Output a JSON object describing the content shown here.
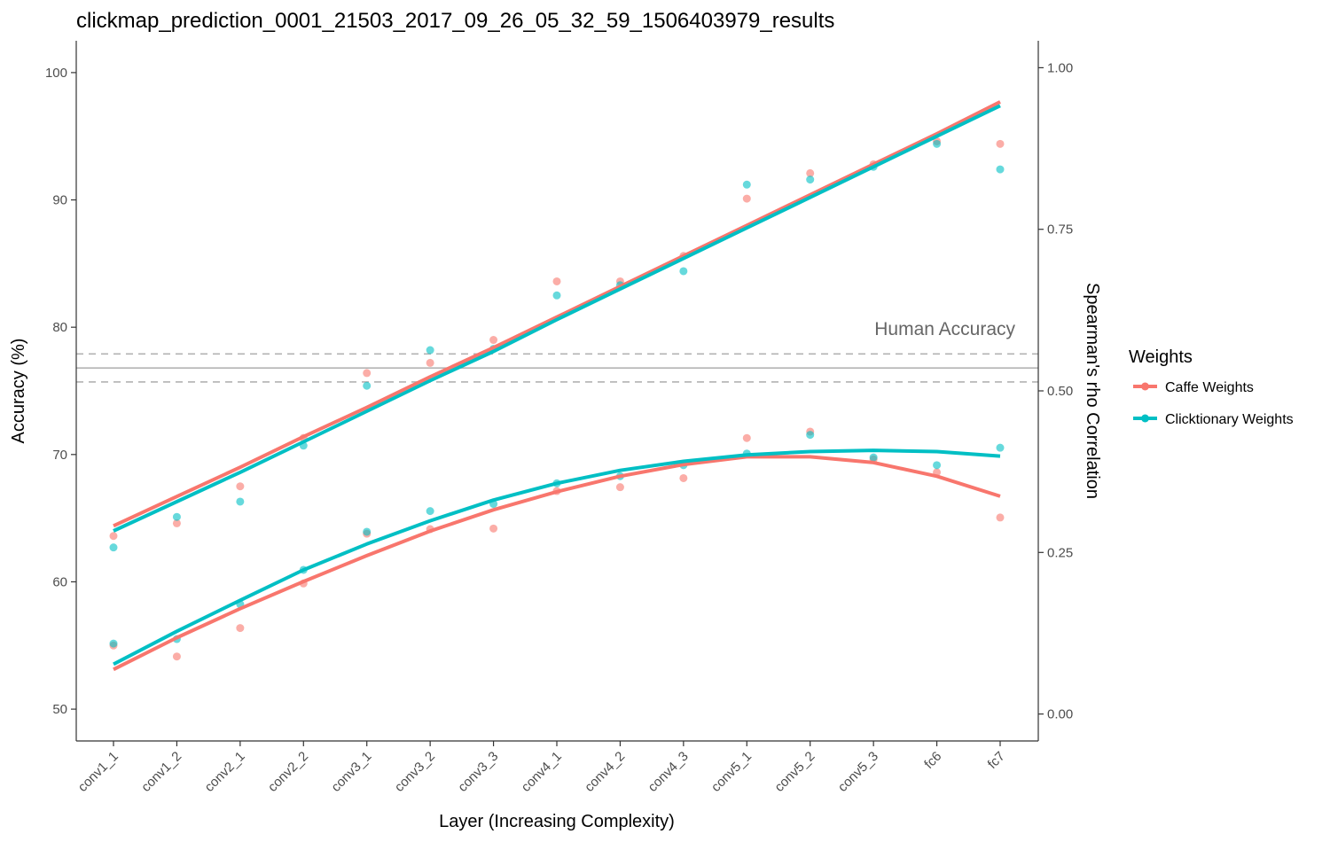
{
  "chart_data": {
    "type": "scatter",
    "title": "clickmap_prediction_0001_21503_2017_09_26_05_32_59_1506403979_results",
    "xlabel": "Layer (Increasing Complexity)",
    "ylabel": "Accuracy (%)",
    "y2label": "Spearman's rho Correlation",
    "categories": [
      "conv1_1",
      "conv1_2",
      "conv2_1",
      "conv2_2",
      "conv3_1",
      "conv3_2",
      "conv3_3",
      "conv4_1",
      "conv4_2",
      "conv4_3",
      "conv5_1",
      "conv5_2",
      "conv5_3",
      "fc6",
      "fc7"
    ],
    "ylim": [
      47.5,
      102.5
    ],
    "y2lim": [
      -0.0417,
      1.0417
    ],
    "yticks": [
      "50",
      "60",
      "70",
      "80",
      "90",
      "100"
    ],
    "y2ticks": [
      "0.00",
      "0.25",
      "0.50",
      "0.75",
      "1.00"
    ],
    "human_accuracy": {
      "label": "Human Accuracy",
      "mean": 76.8,
      "lower": 75.7,
      "upper": 77.9
    },
    "legend": {
      "title": "Weights",
      "position": "right"
    },
    "grid": false,
    "series": [
      {
        "name": "Caffe Weights",
        "color": "#F8766D",
        "accuracy_points": [
          63.6,
          64.6,
          67.5,
          71.3,
          76.4,
          77.2,
          79.0,
          83.6,
          83.6,
          85.6,
          90.1,
          92.1,
          92.8,
          94.6,
          94.4
        ],
        "accuracy_fit": [
          64.4,
          66.7,
          69.0,
          71.4,
          73.7,
          76.1,
          78.4,
          80.8,
          83.2,
          85.6,
          88.0,
          90.4,
          92.8,
          95.2,
          97.7
        ],
        "correlation_points": [
          0.106,
          0.089,
          0.133,
          0.202,
          0.279,
          0.286,
          0.287,
          0.345,
          0.351,
          0.365,
          0.427,
          0.437,
          0.394,
          0.374,
          0.304
        ],
        "correlation_fit": [
          0.069,
          0.118,
          0.163,
          0.205,
          0.245,
          0.283,
          0.316,
          0.344,
          0.368,
          0.386,
          0.398,
          0.398,
          0.389,
          0.368,
          0.337
        ]
      },
      {
        "name": "Clicktionary Weights",
        "color": "#00BFC4",
        "accuracy_points": [
          62.7,
          65.1,
          66.3,
          70.7,
          75.4,
          78.2,
          78.3,
          82.5,
          83.3,
          84.4,
          91.2,
          91.6,
          92.6,
          94.4,
          92.4
        ],
        "accuracy_fit": [
          64.0,
          66.3,
          68.6,
          71.0,
          73.4,
          75.8,
          78.1,
          80.6,
          83.0,
          85.4,
          87.8,
          90.2,
          92.6,
          95.0,
          97.4
        ],
        "correlation_points": [
          0.109,
          0.116,
          0.17,
          0.223,
          0.282,
          0.314,
          0.325,
          0.357,
          0.368,
          0.385,
          0.403,
          0.432,
          0.397,
          0.385,
          0.412
        ],
        "correlation_fit": [
          0.077,
          0.128,
          0.176,
          0.223,
          0.263,
          0.299,
          0.331,
          0.357,
          0.377,
          0.391,
          0.401,
          0.406,
          0.408,
          0.406,
          0.399
        ]
      }
    ]
  }
}
